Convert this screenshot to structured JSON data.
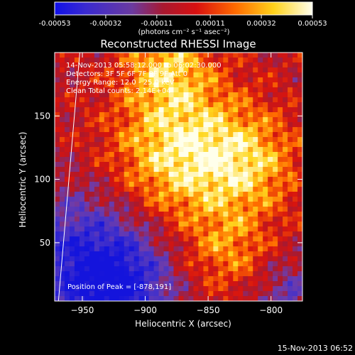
{
  "chart_data": {
    "type": "heatmap",
    "title": "Reconstructed RHESSI Image",
    "xlabel": "Heliocentric X (arcsec)",
    "ylabel": "Heliocentric Y (arcsec)",
    "xlim": [
      -972,
      -775
    ],
    "ylim": [
      4,
      200
    ],
    "x_ticks": [
      -950,
      -900,
      -850,
      -800
    ],
    "y_ticks": [
      50,
      100,
      150
    ],
    "colorbar": {
      "unit_label": "(photons cm⁻² s⁻¹ asec⁻²)",
      "range": [
        -0.00053,
        0.00053
      ],
      "tick_values": [
        -0.00053,
        -0.00032,
        -0.00011,
        0.00011,
        0.00032,
        0.00053
      ],
      "tick_labels": [
        "-0.00053",
        "-0.00032",
        "-0.00011",
        "0.00011",
        "0.00032",
        "0.00053"
      ]
    },
    "annotations": {
      "time": "14-Nov-2013 05:58:12.000 to 06:02:30.000",
      "detectors": "Detectors: 3F 5F 6F 7F 8F 9F  Att 0",
      "energy": "Energy Range: 12.0 - 25.0 keV",
      "method": "Clean     Total counts: 2.14E+04",
      "peak": "Position of Peak = [-878,191]"
    },
    "limb_line": {
      "x": [
        -969,
        -952
      ],
      "y": [
        4,
        200
      ]
    },
    "grid": false,
    "colors": {
      "negative": "#1010e0",
      "mid": "#c81818",
      "positive": "#ffffee"
    }
  },
  "footer": {
    "timestamp": "15-Nov-2013 06:52"
  }
}
